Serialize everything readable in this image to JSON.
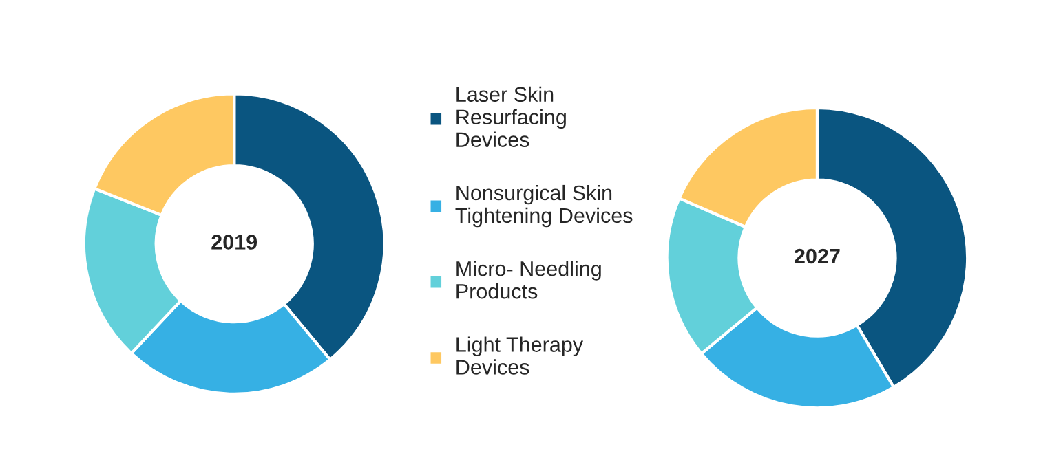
{
  "chart_data": [
    {
      "type": "donut",
      "title": "2019",
      "categories": [
        "Laser Skin Resurfacing Devices",
        "Nonsurgical Skin Tightening Devices",
        "Micro- Needling Products",
        "Light Therapy Devices"
      ],
      "values": [
        39,
        23,
        19,
        19
      ],
      "colors": [
        "#0a5580",
        "#36b0e4",
        "#62d0da",
        "#fec861"
      ],
      "legend": "right"
    },
    {
      "type": "donut",
      "title": "2027",
      "values": [
        41.5,
        22.5,
        17.5,
        18.5
      ],
      "colors": [
        "#0a5580",
        "#36b0e4",
        "#62d0da",
        "#fec861"
      ]
    }
  ]
}
